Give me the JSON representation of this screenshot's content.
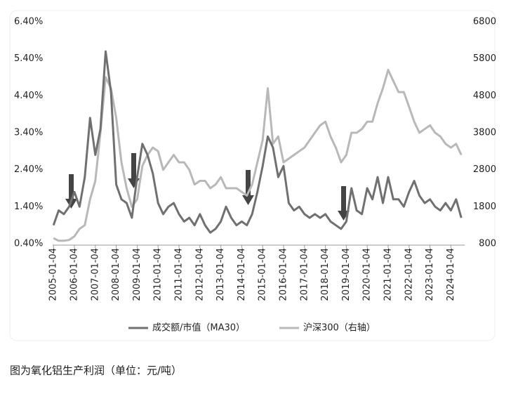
{
  "chart_data": {
    "type": "line",
    "x": [
      "2005-01-04",
      "2005-04-04",
      "2005-07-04",
      "2005-10-04",
      "2006-01-04",
      "2006-04-04",
      "2006-07-04",
      "2006-10-04",
      "2007-01-04",
      "2007-04-04",
      "2007-07-04",
      "2007-10-04",
      "2008-01-04",
      "2008-04-04",
      "2008-07-04",
      "2008-10-04",
      "2009-01-04",
      "2009-04-04",
      "2009-07-04",
      "2009-10-04",
      "2010-01-04",
      "2010-04-04",
      "2010-07-04",
      "2010-10-04",
      "2011-01-04",
      "2011-04-04",
      "2011-07-04",
      "2011-10-04",
      "2012-01-04",
      "2012-04-04",
      "2012-07-04",
      "2012-10-04",
      "2013-01-04",
      "2013-04-04",
      "2013-07-04",
      "2013-10-04",
      "2014-01-04",
      "2014-04-04",
      "2014-07-04",
      "2014-10-04",
      "2015-01-04",
      "2015-04-04",
      "2015-07-04",
      "2015-10-04",
      "2016-01-04",
      "2016-04-04",
      "2016-07-04",
      "2016-10-04",
      "2017-01-04",
      "2017-04-04",
      "2017-07-04",
      "2017-10-04",
      "2018-01-04",
      "2018-04-04",
      "2018-07-04",
      "2018-10-04",
      "2019-01-04",
      "2019-04-04",
      "2019-07-04",
      "2019-10-04",
      "2020-01-04",
      "2020-04-04",
      "2020-07-04",
      "2020-10-04",
      "2021-01-04",
      "2021-04-04",
      "2021-07-04",
      "2021-10-04",
      "2022-01-04",
      "2022-04-04",
      "2022-07-04",
      "2022-10-04",
      "2023-01-04",
      "2023-04-04",
      "2023-07-04",
      "2023-10-04",
      "2024-01-04",
      "2024-04-04",
      "2024-07-04"
    ],
    "series": [
      {
        "name": "成交额/市值（MA30）",
        "color": "#707070",
        "axis": "y",
        "values": [
          0.9,
          1.3,
          1.2,
          1.4,
          1.8,
          1.4,
          2.2,
          3.8,
          2.8,
          3.5,
          5.6,
          4.5,
          2.0,
          1.6,
          1.5,
          1.1,
          2.2,
          3.1,
          2.8,
          2.3,
          1.5,
          1.2,
          1.4,
          1.5,
          1.2,
          1.0,
          1.1,
          0.9,
          1.2,
          0.9,
          0.7,
          0.8,
          1.0,
          1.4,
          1.1,
          0.9,
          1.0,
          0.9,
          1.2,
          1.8,
          2.5,
          3.3,
          3.0,
          2.2,
          2.5,
          1.5,
          1.3,
          1.4,
          1.2,
          1.1,
          1.2,
          1.1,
          1.2,
          1.0,
          0.9,
          0.8,
          1.0,
          1.9,
          1.3,
          1.2,
          1.9,
          1.6,
          2.2,
          1.5,
          2.2,
          1.6,
          1.6,
          1.4,
          1.8,
          2.1,
          1.7,
          1.5,
          1.6,
          1.4,
          1.3,
          1.5,
          1.3,
          1.6,
          1.1
        ]
      },
      {
        "name": "沪深300（右轴）",
        "color": "#b8b8b8",
        "axis": "y2",
        "values": [
          950,
          880,
          880,
          900,
          1000,
          1200,
          1300,
          2000,
          2500,
          3800,
          5300,
          5000,
          4200,
          3000,
          2300,
          1800,
          2000,
          2900,
          3200,
          3400,
          3300,
          2800,
          3000,
          3200,
          3000,
          3000,
          2800,
          2400,
          2500,
          2500,
          2300,
          2400,
          2600,
          2300,
          2300,
          2300,
          2200,
          2100,
          2400,
          3000,
          3600,
          5000,
          3500,
          3700,
          3000,
          3100,
          3200,
          3300,
          3400,
          3600,
          3800,
          4000,
          4100,
          3700,
          3400,
          3000,
          3200,
          3800,
          3800,
          3900,
          4100,
          4100,
          4600,
          5000,
          5500,
          5200,
          4900,
          4900,
          4500,
          4100,
          3800,
          3900,
          4000,
          3800,
          3700,
          3500,
          3400,
          3500,
          3200
        ]
      }
    ],
    "xlim": [
      "2004-12-20",
      "2024-09-01"
    ],
    "xticks": [
      "2005-01-04",
      "2006-01-04",
      "2007-01-04",
      "2008-01-04",
      "2009-01-04",
      "2010-01-04",
      "2011-01-04",
      "2012-01-04",
      "2013-01-04",
      "2014-01-04",
      "2015-01-04",
      "2016-01-04",
      "2017-01-04",
      "2018-01-04",
      "2019-01-04",
      "2020-01-04",
      "2021-01-04",
      "2022-01-04",
      "2023-01-04",
      "2024-01-04"
    ],
    "ylim": [
      0.4,
      6.4
    ],
    "yticks": [
      {
        "value": 0.4,
        "label": "0.40%"
      },
      {
        "value": 1.4,
        "label": "1.40%"
      },
      {
        "value": 2.4,
        "label": "2.40%"
      },
      {
        "value": 3.4,
        "label": "3.40%"
      },
      {
        "value": 4.4,
        "label": "4.40%"
      },
      {
        "value": 5.4,
        "label": "5.40%"
      },
      {
        "value": 6.4,
        "label": "6.40%"
      }
    ],
    "y2lim": [
      800,
      6800
    ],
    "y2ticks": [
      800,
      1800,
      2800,
      3800,
      4800,
      5800,
      6800
    ],
    "legend": "bottom",
    "caption": "图为氧化铝生产利润（单位：元/吨）"
  }
}
